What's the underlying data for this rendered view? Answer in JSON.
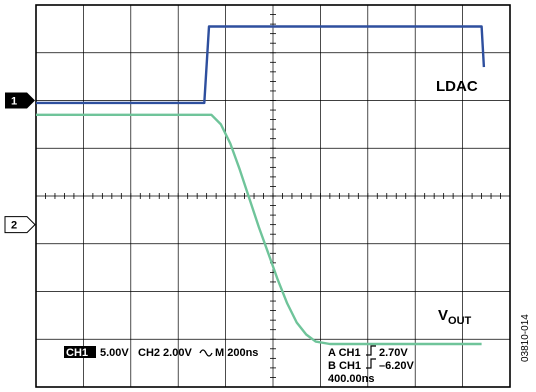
{
  "chart_data": {
    "type": "line",
    "title": "",
    "xlabel": "",
    "ylabel": "",
    "grid": true,
    "x_divisions": 10,
    "y_divisions": 8,
    "xlim": [
      0,
      2000
    ],
    "x_unit": "ns",
    "ylim": [
      -4,
      4
    ],
    "y_unit": "div",
    "channel_markers": [
      {
        "label": "1",
        "level_div": 2.0,
        "filled": true
      },
      {
        "label": "2",
        "level_div": -0.6,
        "filled": false
      }
    ],
    "series": [
      {
        "name": "LDAC",
        "color": "#2e4f9e",
        "x": [
          0,
          710,
          730,
          1880,
          1890
        ],
        "y": [
          1.95,
          1.95,
          3.55,
          3.55,
          2.7
        ]
      },
      {
        "name": "VOUT",
        "color": "#6fc49a",
        "x": [
          0,
          740,
          780,
          820,
          860,
          900,
          940,
          980,
          1020,
          1060,
          1100,
          1140,
          1180,
          1240,
          1300,
          1880
        ],
        "y": [
          1.7,
          1.7,
          1.5,
          1.1,
          0.55,
          -0.05,
          -0.65,
          -1.2,
          -1.75,
          -2.25,
          -2.65,
          -2.9,
          -3.05,
          -3.1,
          -3.1,
          -3.1
        ]
      }
    ],
    "annotations": {
      "ldac_label": "LDAC",
      "vout_label": "V",
      "vout_sub": "OUT"
    },
    "status": {
      "ch1_badge": "CH1",
      "ch1_scale": "5.00V",
      "ch2": "CH2 2.00V",
      "timebase": "M 200ns",
      "trigger_line1_prefix": "A CH1",
      "trigger_line1_value": "2.70V",
      "trigger_line2_prefix": "B CH1",
      "trigger_line2_value": "–6.20V",
      "trigger_line3": "400.00ns"
    },
    "figure_id": "03810-014"
  }
}
